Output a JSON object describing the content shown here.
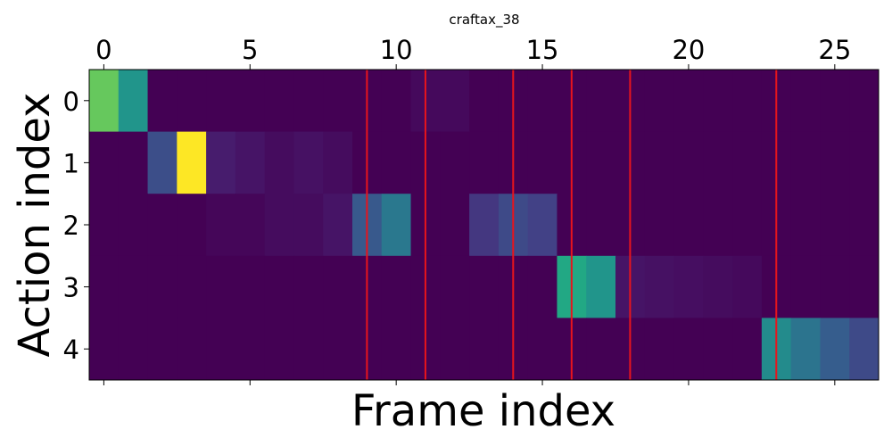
{
  "chart_data": {
    "type": "heatmap",
    "title": "craftax_38",
    "xlabel": "Frame index",
    "ylabel": "Action index",
    "x_ticks": [
      0,
      5,
      10,
      15,
      20,
      25
    ],
    "y_ticks": [
      0,
      1,
      2,
      3,
      4
    ],
    "xlim": [
      -0.5,
      26.5
    ],
    "ylim": [
      -0.5,
      4.5
    ],
    "x_tick_position": "top",
    "colormap": "viridis",
    "value_range": [
      0,
      1
    ],
    "n_frames": 27,
    "n_actions": 5,
    "values": [
      [
        0.85,
        0.65,
        0,
        0,
        0,
        0,
        0,
        0,
        0,
        0,
        0,
        0.03,
        0.03,
        0,
        0,
        0,
        0,
        0,
        0,
        0,
        0,
        0,
        0,
        0,
        0,
        0,
        0
      ],
      [
        0,
        0,
        0.3,
        1.0,
        0.1,
        0.07,
        0.04,
        0.06,
        0.04,
        0,
        0,
        0,
        0,
        0,
        0,
        0,
        0,
        0,
        0,
        0,
        0,
        0,
        0,
        0,
        0,
        0,
        0
      ],
      [
        0,
        0,
        0,
        0,
        0.02,
        0.02,
        0.04,
        0.04,
        0.07,
        0.35,
        0.5,
        0,
        0,
        0.2,
        0.28,
        0.24,
        0,
        0,
        0,
        0,
        0,
        0,
        0,
        0,
        0,
        0,
        0
      ],
      [
        0,
        0,
        0,
        0,
        0,
        0,
        0,
        0,
        0,
        0,
        0,
        0,
        0,
        0,
        0,
        0,
        0.75,
        0.65,
        0.07,
        0.06,
        0.05,
        0.04,
        0.03,
        0,
        0,
        0,
        0
      ],
      [
        0,
        0,
        0,
        0,
        0,
        0,
        0,
        0,
        0,
        0,
        0,
        0,
        0,
        0,
        0,
        0,
        0,
        0,
        0,
        0,
        0,
        0,
        0,
        0.6,
        0.48,
        0.37,
        0.28
      ]
    ],
    "vertical_lines": {
      "x": [
        9,
        11,
        14,
        16,
        18,
        23
      ],
      "color": "#e8141c"
    }
  }
}
